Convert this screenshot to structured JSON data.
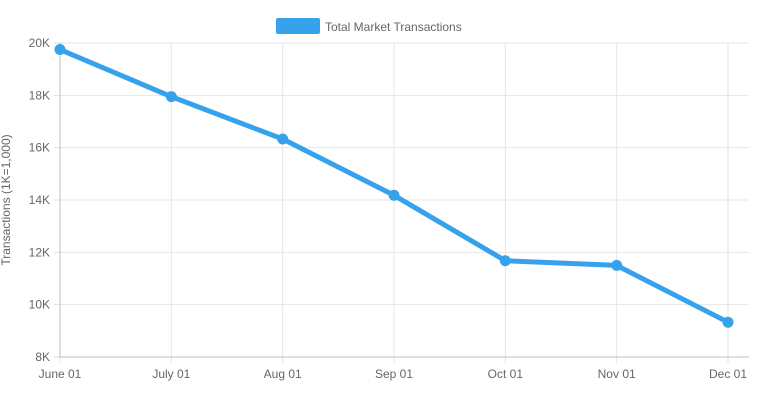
{
  "chart_data": {
    "type": "line",
    "categories": [
      "June 01",
      "July 01",
      "Aug 01",
      "Sep 01",
      "Oct 01",
      "Nov 01",
      "Dec 01"
    ],
    "series": [
      {
        "name": "Total Market Transactions",
        "values": [
          19750,
          17950,
          16330,
          14180,
          11680,
          11500,
          9330
        ],
        "color": "#36a2eb"
      }
    ],
    "ylabel": "Transactions (1K=1,000)",
    "xlabel": "",
    "ylim": [
      8000,
      20000
    ],
    "yticks": [
      {
        "value": 20000,
        "label": "20K"
      },
      {
        "value": 18000,
        "label": "18K"
      },
      {
        "value": 16000,
        "label": "16K"
      },
      {
        "value": 14000,
        "label": "14K"
      },
      {
        "value": 12000,
        "label": "12K"
      },
      {
        "value": 10000,
        "label": "10K"
      },
      {
        "value": 8000,
        "label": "8K"
      }
    ],
    "grid": true,
    "legend": "top"
  }
}
